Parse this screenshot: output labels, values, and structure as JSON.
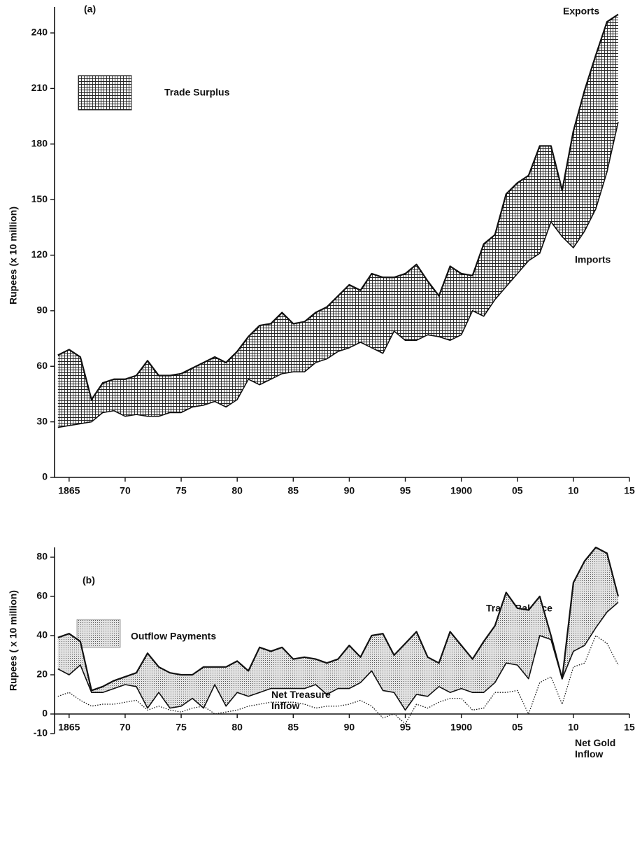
{
  "chart_data": [
    {
      "type": "line",
      "panel": "(a)",
      "ylabel": "Rupees (x 10 million)",
      "fill_between": true,
      "legend": {
        "label": "Trade Surplus",
        "pattern": "crosshatch"
      },
      "x": [
        1864,
        1865,
        1866,
        1867,
        1868,
        1869,
        1870,
        1871,
        1872,
        1873,
        1874,
        1875,
        1876,
        1877,
        1878,
        1879,
        1880,
        1881,
        1882,
        1883,
        1884,
        1885,
        1886,
        1887,
        1888,
        1889,
        1890,
        1891,
        1892,
        1893,
        1894,
        1895,
        1896,
        1897,
        1898,
        1899,
        1900,
        1901,
        1902,
        1903,
        1904,
        1905,
        1906,
        1907,
        1908,
        1909,
        1910,
        1911,
        1912,
        1913,
        1914
      ],
      "series": [
        {
          "name": "Exports",
          "color": "#111111",
          "dash": "solid",
          "values": [
            66,
            69,
            65,
            42,
            51,
            53,
            53,
            55,
            63,
            55,
            55,
            56,
            59,
            62,
            65,
            62,
            68,
            76,
            82,
            83,
            89,
            83,
            84,
            89,
            92,
            98,
            104,
            101,
            110,
            108,
            108,
            110,
            115,
            106,
            98,
            114,
            110,
            109,
            126,
            131,
            153,
            159,
            163,
            179,
            179,
            155,
            187,
            209,
            228,
            246,
            250
          ]
        },
        {
          "name": "Imports",
          "color": "#111111",
          "dash": "solid",
          "values": [
            27,
            28,
            29,
            30,
            35,
            36,
            33,
            34,
            33,
            33,
            35,
            35,
            38,
            39,
            41,
            38,
            42,
            53,
            50,
            53,
            56,
            57,
            57,
            62,
            64,
            68,
            70,
            73,
            70,
            67,
            79,
            74,
            74,
            77,
            76,
            74,
            77,
            90,
            87,
            96,
            103,
            110,
            117,
            121,
            138,
            130,
            124,
            133,
            145,
            165,
            192
          ]
        }
      ],
      "xlim": [
        1863.7,
        1915
      ],
      "ylim": [
        0,
        254
      ],
      "xticks": [
        1865,
        {
          "value": 1870,
          "label": "70"
        },
        {
          "value": 1875,
          "label": "75"
        },
        {
          "value": 1880,
          "label": "80"
        },
        {
          "value": 1885,
          "label": "85"
        },
        {
          "value": 1890,
          "label": "90"
        },
        {
          "value": 1895,
          "label": "95"
        },
        1900,
        {
          "value": 1905,
          "label": "05"
        },
        {
          "value": 1910,
          "label": "10"
        },
        {
          "value": 1915,
          "label": "15"
        }
      ],
      "yticks": [
        0,
        30,
        60,
        90,
        120,
        150,
        180,
        210,
        240
      ]
    },
    {
      "type": "line",
      "panel": "(b)",
      "ylabel": "Rupees ( x 10 million)",
      "fill_between": true,
      "legend": {
        "label": "Outflow Payments",
        "pattern": "dots"
      },
      "x": [
        1864,
        1865,
        1866,
        1867,
        1868,
        1869,
        1870,
        1871,
        1872,
        1873,
        1874,
        1875,
        1876,
        1877,
        1878,
        1879,
        1880,
        1881,
        1882,
        1883,
        1884,
        1885,
        1886,
        1887,
        1888,
        1889,
        1890,
        1891,
        1892,
        1893,
        1894,
        1895,
        1896,
        1897,
        1898,
        1899,
        1900,
        1901,
        1902,
        1903,
        1904,
        1905,
        1906,
        1907,
        1908,
        1909,
        1910,
        1911,
        1912,
        1913,
        1914
      ],
      "series": [
        {
          "name": "Trade Balance",
          "color": "#111111",
          "dash": "solid",
          "values": [
            39,
            41,
            37,
            12,
            14,
            17,
            19,
            21,
            31,
            24,
            21,
            20,
            20,
            24,
            24,
            24,
            27,
            22,
            34,
            32,
            34,
            28,
            29,
            28,
            26,
            28,
            35,
            29,
            40,
            41,
            30,
            36,
            42,
            29,
            26,
            42,
            35,
            28,
            37,
            45,
            62,
            54,
            53,
            60,
            40,
            18,
            67,
            78,
            85,
            82,
            60
          ]
        },
        {
          "name": "Net Treasure Inflow",
          "color": "#111111",
          "dash": "solid",
          "values": [
            23,
            20,
            25,
            11,
            11,
            13,
            15,
            14,
            3,
            11,
            3,
            4,
            8,
            3,
            15,
            4,
            11,
            9,
            11,
            13,
            13,
            13,
            13,
            15,
            10,
            13,
            13,
            16,
            22,
            12,
            11,
            2,
            10,
            9,
            14,
            11,
            13,
            11,
            11,
            16,
            26,
            25,
            18,
            40,
            38,
            18,
            32,
            35,
            44,
            52,
            57
          ]
        },
        {
          "name": "Net Gold Inflow",
          "color": "#111111",
          "dash": "dotted",
          "values": [
            9,
            11,
            7,
            4,
            5,
            5,
            6,
            7,
            2,
            4,
            2,
            1,
            3,
            4,
            0,
            1,
            2,
            4,
            5,
            6,
            6,
            6,
            5,
            3,
            4,
            4,
            5,
            7,
            4,
            -2,
            0,
            -5,
            5,
            3,
            6,
            8,
            8,
            2,
            3,
            11,
            11,
            12,
            0,
            16,
            19,
            5,
            24,
            26,
            40,
            36,
            25
          ]
        }
      ],
      "xlim": [
        1863.7,
        1915
      ],
      "ylim": [
        -10,
        85
      ],
      "xticks": [
        1865,
        {
          "value": 1870,
          "label": "70"
        },
        {
          "value": 1875,
          "label": "75"
        },
        {
          "value": 1880,
          "label": "80"
        },
        {
          "value": 1885,
          "label": "85"
        },
        {
          "value": 1890,
          "label": "90"
        },
        {
          "value": 1895,
          "label": "95"
        },
        1900,
        {
          "value": 1905,
          "label": "05"
        },
        {
          "value": 1910,
          "label": "10"
        },
        {
          "value": 1915,
          "label": "15"
        }
      ],
      "yticks": [
        -10,
        0,
        20,
        40,
        60,
        80
      ]
    }
  ]
}
